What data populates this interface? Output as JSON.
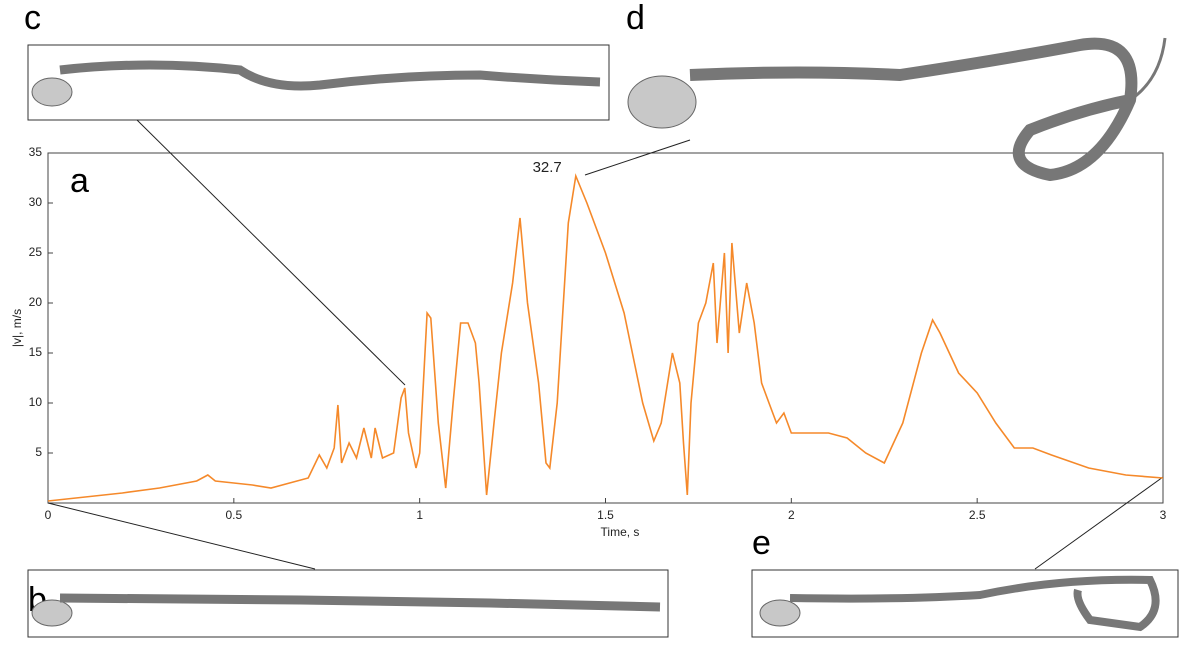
{
  "chart_data": {
    "type": "line",
    "xlabel": "Time, s",
    "ylabel": "|v|, m/s",
    "xlim": [
      0,
      3
    ],
    "ylim": [
      0,
      35
    ],
    "xticks": [
      0,
      0.5,
      1,
      1.5,
      2,
      2.5,
      3
    ],
    "yticks": [
      5,
      10,
      15,
      20,
      25,
      30,
      35
    ],
    "peak_label": "32.7",
    "panel_labels": [
      "a",
      "b",
      "c",
      "d",
      "e"
    ],
    "series": [
      {
        "color": "#f5892a",
        "x": [
          0,
          0.1,
          0.2,
          0.3,
          0.4,
          0.43,
          0.45,
          0.5,
          0.55,
          0.6,
          0.65,
          0.7,
          0.73,
          0.75,
          0.77,
          0.78,
          0.79,
          0.81,
          0.83,
          0.85,
          0.87,
          0.88,
          0.9,
          0.93,
          0.95,
          0.96,
          0.97,
          0.99,
          1.0,
          1.02,
          1.03,
          1.05,
          1.07,
          1.09,
          1.11,
          1.13,
          1.15,
          1.16,
          1.18,
          1.2,
          1.22,
          1.25,
          1.27,
          1.29,
          1.32,
          1.34,
          1.35,
          1.37,
          1.4,
          1.42,
          1.45,
          1.5,
          1.55,
          1.6,
          1.63,
          1.65,
          1.68,
          1.7,
          1.71,
          1.72,
          1.73,
          1.75,
          1.77,
          1.79,
          1.8,
          1.82,
          1.83,
          1.84,
          1.86,
          1.88,
          1.9,
          1.92,
          1.94,
          1.96,
          1.98,
          2.0,
          2.05,
          2.1,
          2.15,
          2.2,
          2.25,
          2.3,
          2.35,
          2.38,
          2.4,
          2.45,
          2.5,
          2.55,
          2.6,
          2.65,
          2.7,
          2.8,
          2.9,
          3.0
        ],
        "values": [
          0.2,
          0.6,
          1.0,
          1.5,
          2.2,
          2.8,
          2.2,
          2.0,
          1.8,
          1.5,
          2.0,
          2.5,
          4.8,
          3.5,
          5.5,
          9.8,
          4,
          6,
          4.5,
          7.5,
          4.5,
          7.5,
          4.5,
          5,
          10.5,
          11.5,
          7,
          3.5,
          5,
          19,
          18.5,
          8,
          1.5,
          10,
          18,
          18,
          16,
          12,
          0.8,
          8,
          15,
          22,
          28.5,
          20,
          12,
          4,
          3.5,
          10,
          28,
          32.7,
          30,
          25,
          19,
          10,
          6.2,
          8,
          15,
          12,
          6,
          0.8,
          10,
          18,
          20,
          24,
          16,
          25,
          15,
          26,
          17,
          22,
          18,
          12,
          10,
          8,
          9,
          7,
          7,
          7,
          6.5,
          5,
          4,
          8,
          15,
          18.3,
          17,
          13,
          11,
          8,
          5.5,
          5.5,
          4.8,
          3.5,
          2.8,
          2.5
        ]
      }
    ]
  }
}
